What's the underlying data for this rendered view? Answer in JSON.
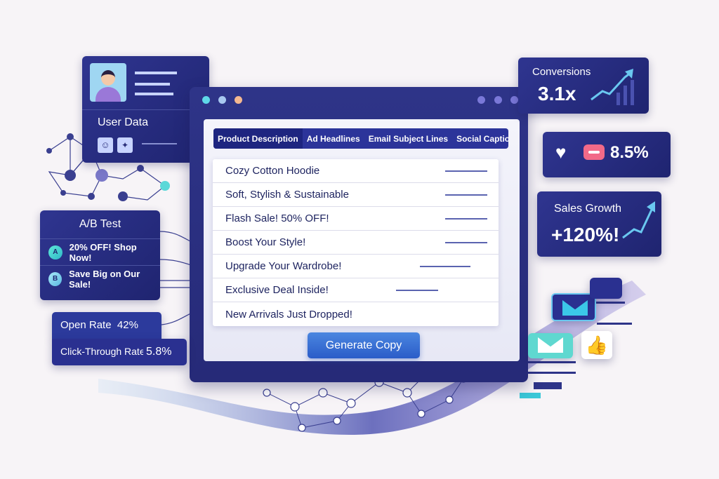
{
  "user_data": {
    "title": "User Data",
    "icons": [
      "user-icon",
      "twitter-bird-icon"
    ]
  },
  "window": {
    "tabs": [
      {
        "label": "Product Description",
        "active": true
      },
      {
        "label": "Ad Headlines"
      },
      {
        "label": "Email Subject Lines"
      },
      {
        "label": "Social Captions"
      }
    ],
    "items": [
      "Cozy Cotton Hoodie",
      "Soft, Stylish & Sustainable",
      "Flash Sale! 50% OFF!",
      "Boost Your Style!",
      "Upgrade Your Wardrobe!",
      "Exclusive Deal Inside!",
      "New Arrivals Just Dropped!"
    ],
    "generate_label": "Generate Copy"
  },
  "ab_test": {
    "title": "A/B Test",
    "variants": [
      {
        "badge": "A",
        "text": "20% OFF! Shop Now!"
      },
      {
        "badge": "B",
        "text": "Save Big on Our Sale!"
      }
    ]
  },
  "metrics": {
    "open_rate_label": "Open Rate",
    "open_rate": "42%",
    "ctr_label": "Click-Through Rate",
    "ctr": "5.8%"
  },
  "conversions": {
    "label": "Conversions",
    "value": "3.1x"
  },
  "social": {
    "value": "8.5%",
    "icons": [
      "heart-icon",
      "chat-bubble-icon"
    ]
  },
  "sales": {
    "label": "Sales Growth",
    "value": "+120%!"
  },
  "colors": {
    "navy": "#262a78",
    "accent": "#3bc8d8",
    "button": "#3a72d8"
  }
}
